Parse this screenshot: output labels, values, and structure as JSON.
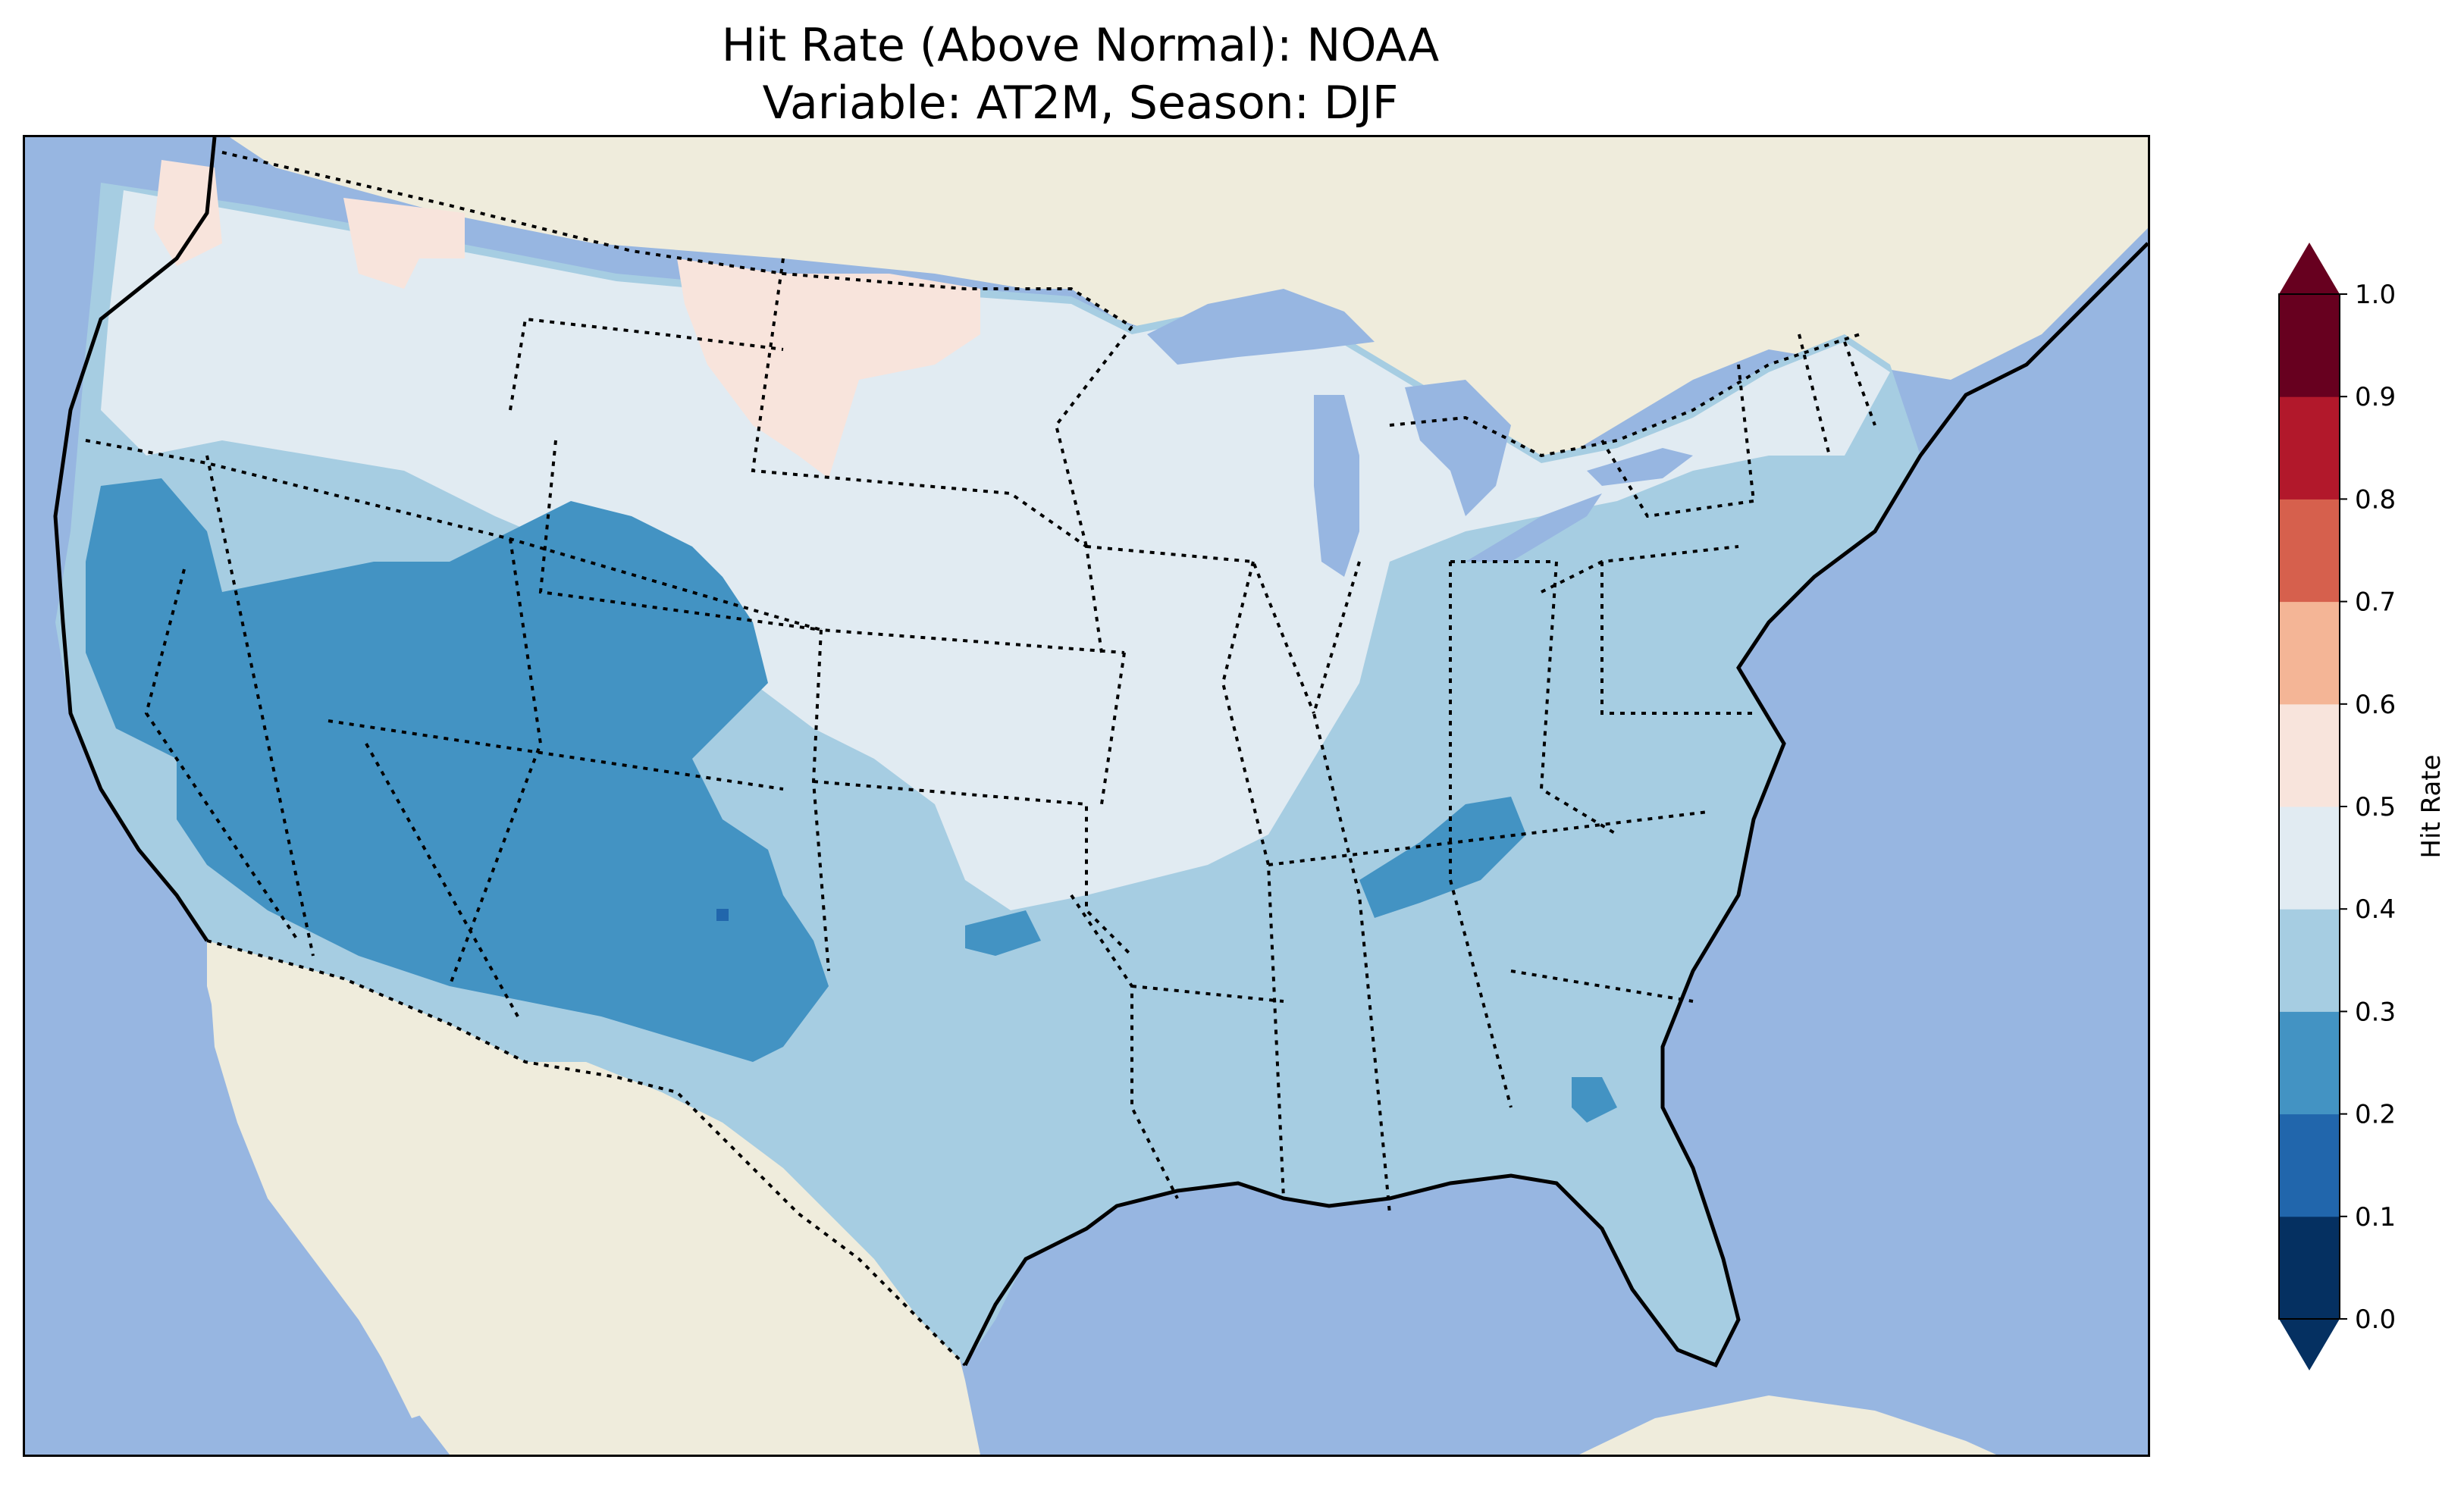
{
  "title": {
    "line1": "Hit Rate (Above Normal): NOAA",
    "line2": "Variable: AT2M, Season: DJF"
  },
  "colorbar": {
    "label": "Hit Rate",
    "ticks": [
      "0.0",
      "0.1",
      "0.2",
      "0.3",
      "0.4",
      "0.5",
      "0.6",
      "0.7",
      "0.8",
      "0.9",
      "1.0"
    ],
    "levels": [
      {
        "range": "0.0-0.1",
        "color": "#053061"
      },
      {
        "range": "0.1-0.2",
        "color": "#2166ac"
      },
      {
        "range": "0.2-0.3",
        "color": "#4393c3"
      },
      {
        "range": "0.3-0.4",
        "color": "#a6cde2"
      },
      {
        "range": "0.4-0.5",
        "color": "#e1ebf2"
      },
      {
        "range": "0.5-0.6",
        "color": "#f8e4dc"
      },
      {
        "range": "0.6-0.7",
        "color": "#f4b596"
      },
      {
        "range": "0.7-0.8",
        "color": "#d6604d"
      },
      {
        "range": "0.8-0.9",
        "color": "#b2182b"
      },
      {
        "range": "0.9-1.0",
        "color": "#67001f"
      }
    ],
    "extend": "both"
  },
  "map": {
    "ocean_color": "#97b6e1",
    "land_color": "#efecdc"
  }
}
